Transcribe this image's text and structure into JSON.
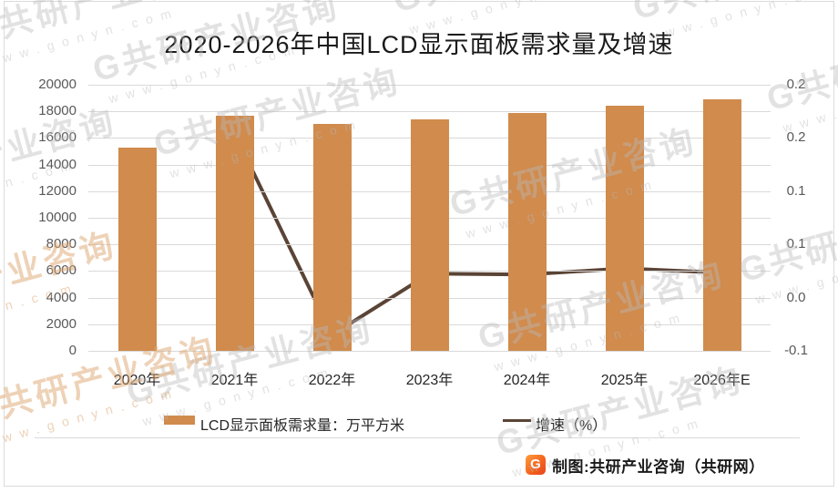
{
  "title": "2020-2026年中国LCD显示面板需求量及增速",
  "chart_data": {
    "type": "combo-bar-line",
    "title": "2020-2026年中国LCD显示面板需求量及增速",
    "categories": [
      "2020年",
      "2021年",
      "2022年",
      "2023年",
      "2024年",
      "2025年",
      "2026年E"
    ],
    "series": [
      {
        "name": "LCD显示面板需求量：万平方米",
        "type": "bar",
        "axis": "left",
        "color": "#d08b4d",
        "values": [
          15300,
          17650,
          17050,
          17420,
          17850,
          18400,
          18900
        ]
      },
      {
        "name": "增速（%）",
        "type": "line",
        "axis": "right",
        "color": "#5a4436",
        "values": [
          null,
          0.18,
          -0.047,
          0.022,
          0.021,
          0.028,
          0.023
        ]
      }
    ],
    "left_axis": {
      "min": 0,
      "max": 20000,
      "tick_step": 2000,
      "tick_labels_top_to_bottom": [
        "20000",
        "18000",
        "16000",
        "14000",
        "12000",
        "10000",
        "8000",
        "6000",
        "4000",
        "2000",
        "0"
      ]
    },
    "right_axis": {
      "plot_min": -0.065,
      "plot_max": 0.235,
      "tick_labels_top_to_bottom": [
        "0.2",
        "0.2",
        "0.1",
        "0.1",
        "0.0",
        "-0.1"
      ]
    },
    "grid": true,
    "legend_position": "bottom"
  },
  "footer": {
    "logo_letter": "G",
    "credit": "制图:共研产业咨询（共研网）"
  },
  "watermark": {
    "brand": "G共研产业咨询",
    "url": "www.gonyn.com"
  },
  "colors": {
    "bar": "#d08b4d",
    "line": "#5a4436",
    "grid": "#d9d9d9",
    "axis_text": "#595959",
    "text": "#262626"
  }
}
